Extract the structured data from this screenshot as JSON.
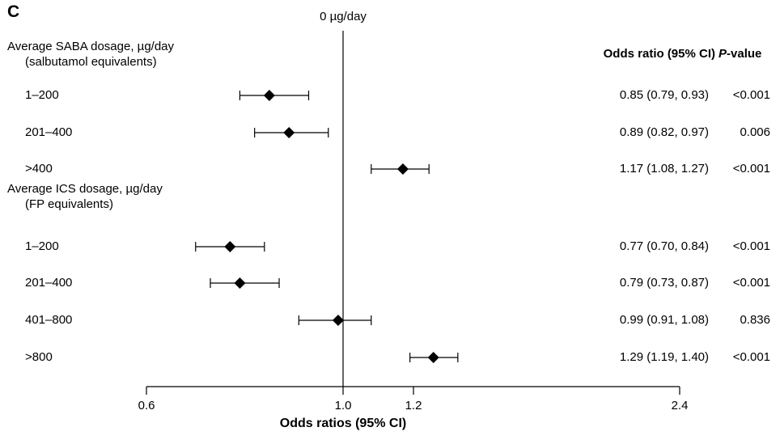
{
  "panel_label": "C",
  "chart_data": {
    "type": "forest",
    "reference_label": "0 µg/day",
    "reference_value": 1.0,
    "xlabel": "Odds ratios (95% CI)",
    "x_ticks": [
      {
        "value": 0.6,
        "label": "0.6"
      },
      {
        "value": 1.0,
        "label": "1.0"
      },
      {
        "value": 1.2,
        "label": "1.2"
      },
      {
        "value": 2.4,
        "label": "2.4"
      }
    ],
    "columns": {
      "or_header": "Odds ratio (95% CI)",
      "p_header_italic": "P",
      "p_header_rest": "-value"
    },
    "groups": [
      {
        "title_line1": "Average SABA dosage, µg/day",
        "title_line2": "(salbutamol equivalents)",
        "rows": [
          {
            "label": "1–200",
            "or": 0.85,
            "lo": 0.79,
            "hi": 0.93,
            "or_text": "0.85 (0.79, 0.93)",
            "p": "<0.001"
          },
          {
            "label": "201–400",
            "or": 0.89,
            "lo": 0.82,
            "hi": 0.97,
            "or_text": "0.89 (0.82, 0.97)",
            "p": "0.006"
          },
          {
            "label": ">400",
            "or": 1.17,
            "lo": 1.08,
            "hi": 1.27,
            "or_text": "1.17 (1.08, 1.27)",
            "p": "<0.001"
          }
        ]
      },
      {
        "title_line1": "Average ICS dosage, µg/day",
        "title_line2": "(FP equivalents)",
        "rows": [
          {
            "label": "1–200",
            "or": 0.77,
            "lo": 0.7,
            "hi": 0.84,
            "or_text": "0.77 (0.70, 0.84)",
            "p": "<0.001"
          },
          {
            "label": "201–400",
            "or": 0.79,
            "lo": 0.73,
            "hi": 0.87,
            "or_text": "0.79 (0.73, 0.87)",
            "p": "<0.001"
          },
          {
            "label": "401–800",
            "or": 0.99,
            "lo": 0.91,
            "hi": 1.08,
            "or_text": "0.99 (0.91, 1.08)",
            "p": "0.836"
          },
          {
            "label": ">800",
            "or": 1.29,
            "lo": 1.19,
            "hi": 1.4,
            "or_text": "1.29 (1.19, 1.40)",
            "p": "<0.001"
          }
        ]
      }
    ]
  }
}
